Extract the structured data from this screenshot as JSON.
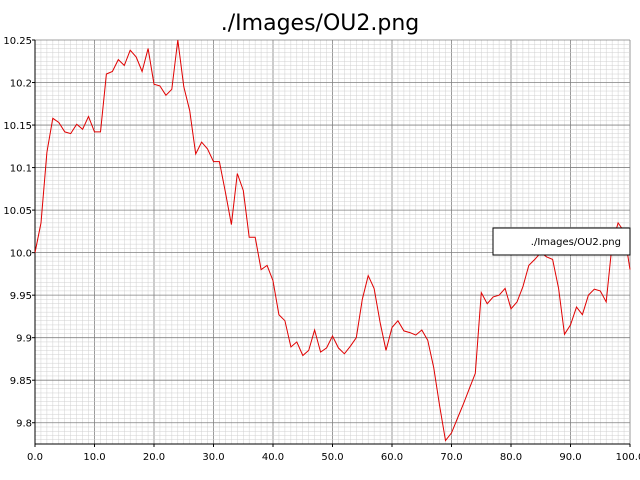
{
  "chart_data": {
    "type": "line",
    "title": "./Images/OU2.png",
    "xlabel": "",
    "ylabel": "",
    "xlim": [
      0,
      100
    ],
    "ylim": [
      9.775,
      10.25
    ],
    "x_ticks": [
      "0.0",
      "10.0",
      "20.0",
      "30.0",
      "40.0",
      "50.0",
      "60.0",
      "70.0",
      "80.0",
      "90.0",
      "100.0"
    ],
    "y_ticks": [
      "10.25",
      "10.2",
      "10.15",
      "10.1",
      "10.05",
      "10.0",
      "9.95",
      "9.9",
      "9.85",
      "9.8"
    ],
    "grid": true,
    "legend_position": "right",
    "colors": {
      "series": "#e00000",
      "grid_major": "#808080",
      "grid_minor": "#d0d0d0"
    },
    "series": [
      {
        "name": "./Images/OU2.png",
        "x": [
          0,
          1,
          2,
          3,
          4,
          5,
          6,
          7,
          8,
          9,
          10,
          11,
          12,
          13,
          14,
          15,
          16,
          17,
          18,
          19,
          20,
          21,
          22,
          23,
          24,
          25,
          26,
          27,
          28,
          29,
          30,
          31,
          32,
          33,
          34,
          35,
          36,
          37,
          38,
          39,
          40,
          41,
          42,
          43,
          44,
          45,
          46,
          47,
          48,
          49,
          50,
          51,
          52,
          53,
          54,
          55,
          56,
          57,
          58,
          59,
          60,
          61,
          62,
          63,
          64,
          65,
          66,
          67,
          68,
          69,
          70,
          71,
          72,
          73,
          74,
          75,
          76,
          77,
          78,
          79,
          80,
          81,
          82,
          83,
          84,
          85,
          86,
          87,
          88,
          89,
          90,
          91,
          92,
          93,
          94,
          95,
          96,
          97,
          98,
          99,
          100
        ],
        "values": [
          10.0,
          10.035,
          10.118,
          10.158,
          10.153,
          10.142,
          10.14,
          10.151,
          10.145,
          10.16,
          10.142,
          10.142,
          10.21,
          10.213,
          10.227,
          10.22,
          10.238,
          10.23,
          10.213,
          10.24,
          10.198,
          10.196,
          10.185,
          10.192,
          10.25,
          10.195,
          10.167,
          10.116,
          10.13,
          10.122,
          10.107,
          10.107,
          10.071,
          10.033,
          10.093,
          10.073,
          10.018,
          10.018,
          9.98,
          9.985,
          9.967,
          9.927,
          9.92,
          9.889,
          9.895,
          9.879,
          9.885,
          9.909,
          9.883,
          9.888,
          9.902,
          9.888,
          9.881,
          9.89,
          9.9,
          9.945,
          9.973,
          9.958,
          9.918,
          9.885,
          9.912,
          9.92,
          9.908,
          9.906,
          9.903,
          9.909,
          9.897,
          9.865,
          9.82,
          9.779,
          9.788,
          9.805,
          9.822,
          9.84,
          9.858,
          9.953,
          9.94,
          9.948,
          9.95,
          9.958,
          9.934,
          9.942,
          9.96,
          9.985,
          9.992,
          10.0,
          9.995,
          9.992,
          9.958,
          9.904,
          9.915,
          9.936,
          9.927,
          9.95,
          9.957,
          9.955,
          9.942,
          10.01,
          10.035,
          10.025,
          9.98
        ]
      }
    ]
  }
}
